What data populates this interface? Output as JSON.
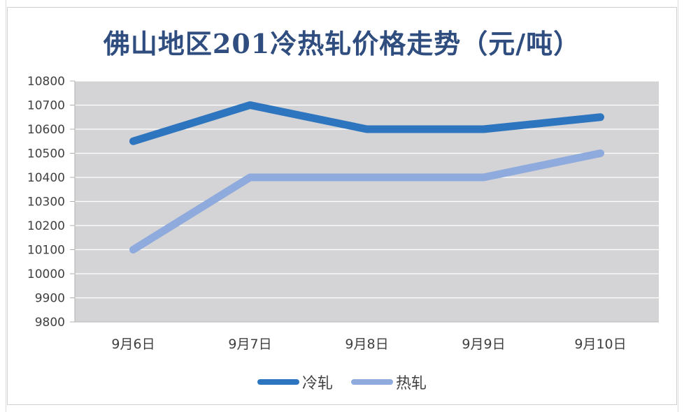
{
  "chart_data": {
    "type": "line",
    "title": "佛山地区201冷热轧价格走势（元/吨）",
    "categories": [
      "9月6日",
      "9月7日",
      "9月8日",
      "9月9日",
      "9月10日"
    ],
    "series": [
      {
        "name": "冷轧",
        "values": [
          10550,
          10700,
          10600,
          10600,
          10650
        ],
        "color": "#2e75c0"
      },
      {
        "name": "热轧",
        "values": [
          10100,
          10400,
          10400,
          10400,
          10500
        ],
        "color": "#8faadc"
      }
    ],
    "ylim": [
      9800,
      10800
    ],
    "yticks": [
      9800,
      9900,
      10000,
      10100,
      10200,
      10300,
      10400,
      10500,
      10600,
      10700,
      10800
    ],
    "grid": true,
    "legend_position": "bottom",
    "plot_background": "#d4d4d6",
    "gridline_color": "#ffffff"
  }
}
